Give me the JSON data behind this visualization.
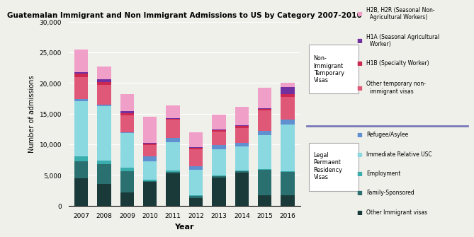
{
  "title": "Guatemalan Immigrant and Non Immigrant Admissions to US by Category 2007-2016",
  "xlabel": "Year",
  "ylabel": "Number of admissions",
  "years": [
    2007,
    2008,
    2009,
    2010,
    2011,
    2012,
    2013,
    2014,
    2015,
    2016
  ],
  "categories": [
    "Other Immigrant visas",
    "Family-Sponsored",
    "Employment",
    "Immediate Relative USC",
    "Refugee/Asylee",
    "Other temporary non-immigrant visas",
    "H1B (Specialty Worker)",
    "H1A (Seasonal Agricultural Worker)",
    "H2B, H2R (Seasonal Non-Agricultural Workers)"
  ],
  "colors": [
    "#1a3a3a",
    "#2a7070",
    "#3aadad",
    "#8ad8e0",
    "#6090d0",
    "#e05878",
    "#cc2850",
    "#7030a0",
    "#f0a0c8"
  ],
  "data": {
    "Other Immigrant visas": [
      4500,
      3600,
      2200,
      3900,
      5300,
      1200,
      4600,
      5400,
      1700,
      1700
    ],
    "Family-Sponsored": [
      2700,
      3200,
      3400,
      100,
      200,
      400,
      200,
      200,
      4200,
      3800
    ],
    "Employment": [
      800,
      600,
      600,
      200,
      200,
      100,
      100,
      100,
      100,
      100
    ],
    "Immediate Relative USC": [
      9000,
      8800,
      5600,
      3000,
      4700,
      4100,
      4300,
      4000,
      5500,
      7600
    ],
    "Refugee/Asylee": [
      400,
      300,
      200,
      800,
      700,
      600,
      700,
      500,
      700,
      900
    ],
    "Other temporary non-immigrant visas": [
      3600,
      3200,
      2700,
      1900,
      2900,
      2800,
      2200,
      2500,
      3300,
      3700
    ],
    "H1B (Specialty Worker)": [
      500,
      500,
      400,
      200,
      200,
      200,
      200,
      300,
      300,
      400
    ],
    "H1A (Seasonal Agricultural Worker)": [
      300,
      400,
      300,
      100,
      100,
      100,
      100,
      100,
      100,
      1200
    ],
    "H2B, H2R (Seasonal Non-Agricultural Workers)": [
      3700,
      2100,
      2800,
      4300,
      2100,
      2500,
      2500,
      3000,
      3300,
      700
    ]
  },
  "ylim": [
    0,
    30000
  ],
  "yticks": [
    0,
    5000,
    10000,
    15000,
    20000,
    25000,
    30000
  ],
  "divider_color": "#7878b8",
  "background_color": "#f0f0eb"
}
